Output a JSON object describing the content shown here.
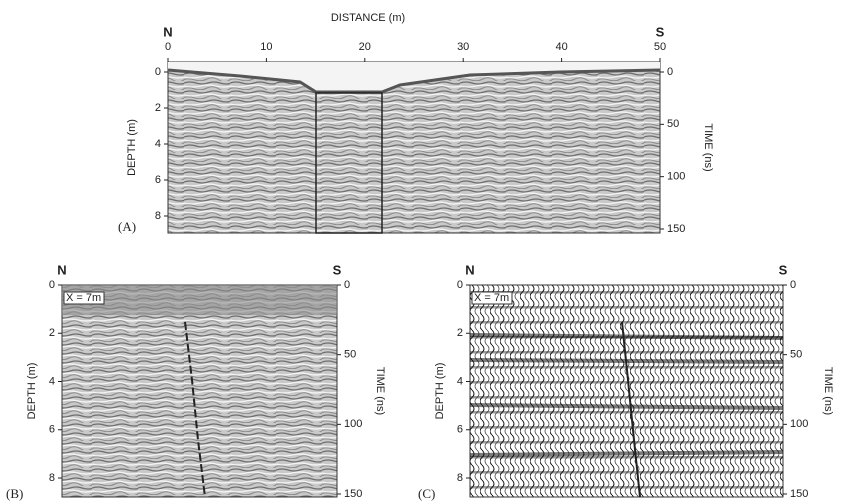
{
  "panels": [
    {
      "label": "(A)",
      "top_axis": "DISTANCE (m)",
      "left_end": "N",
      "right_end": "S",
      "left_axis": "DEPTH (m)",
      "right_axis": "TIME (ns)",
      "xlim": [
        0,
        50
      ],
      "xticks": [
        0,
        10,
        20,
        30,
        40,
        50
      ],
      "ylim": [
        0,
        8
      ],
      "yticks": [
        0,
        2,
        4,
        6,
        8
      ],
      "y2lim": [
        0,
        150
      ],
      "y2ticks": [
        0,
        50,
        100,
        150
      ]
    },
    {
      "label": "(B)",
      "left_end": "N",
      "right_end": "S",
      "inset": "X = 7m",
      "left_axis": "DEPTH (m)",
      "right_axis": "TIME (ns)",
      "ylim": [
        0,
        8
      ],
      "yticks": [
        0,
        2,
        4,
        6,
        8
      ],
      "y2lim": [
        0,
        150
      ],
      "y2ticks": [
        0,
        50,
        100,
        150
      ]
    },
    {
      "label": "(C)",
      "left_end": "N",
      "right_end": "S",
      "inset": "X = 7m",
      "left_axis": "DEPTH (m)",
      "right_axis": "TIME (ns)",
      "ylim": [
        0,
        8
      ],
      "yticks": [
        0,
        2,
        4,
        6,
        8
      ],
      "y2lim": [
        0,
        150
      ],
      "y2ticks": [
        0,
        50,
        100,
        150
      ]
    }
  ]
}
